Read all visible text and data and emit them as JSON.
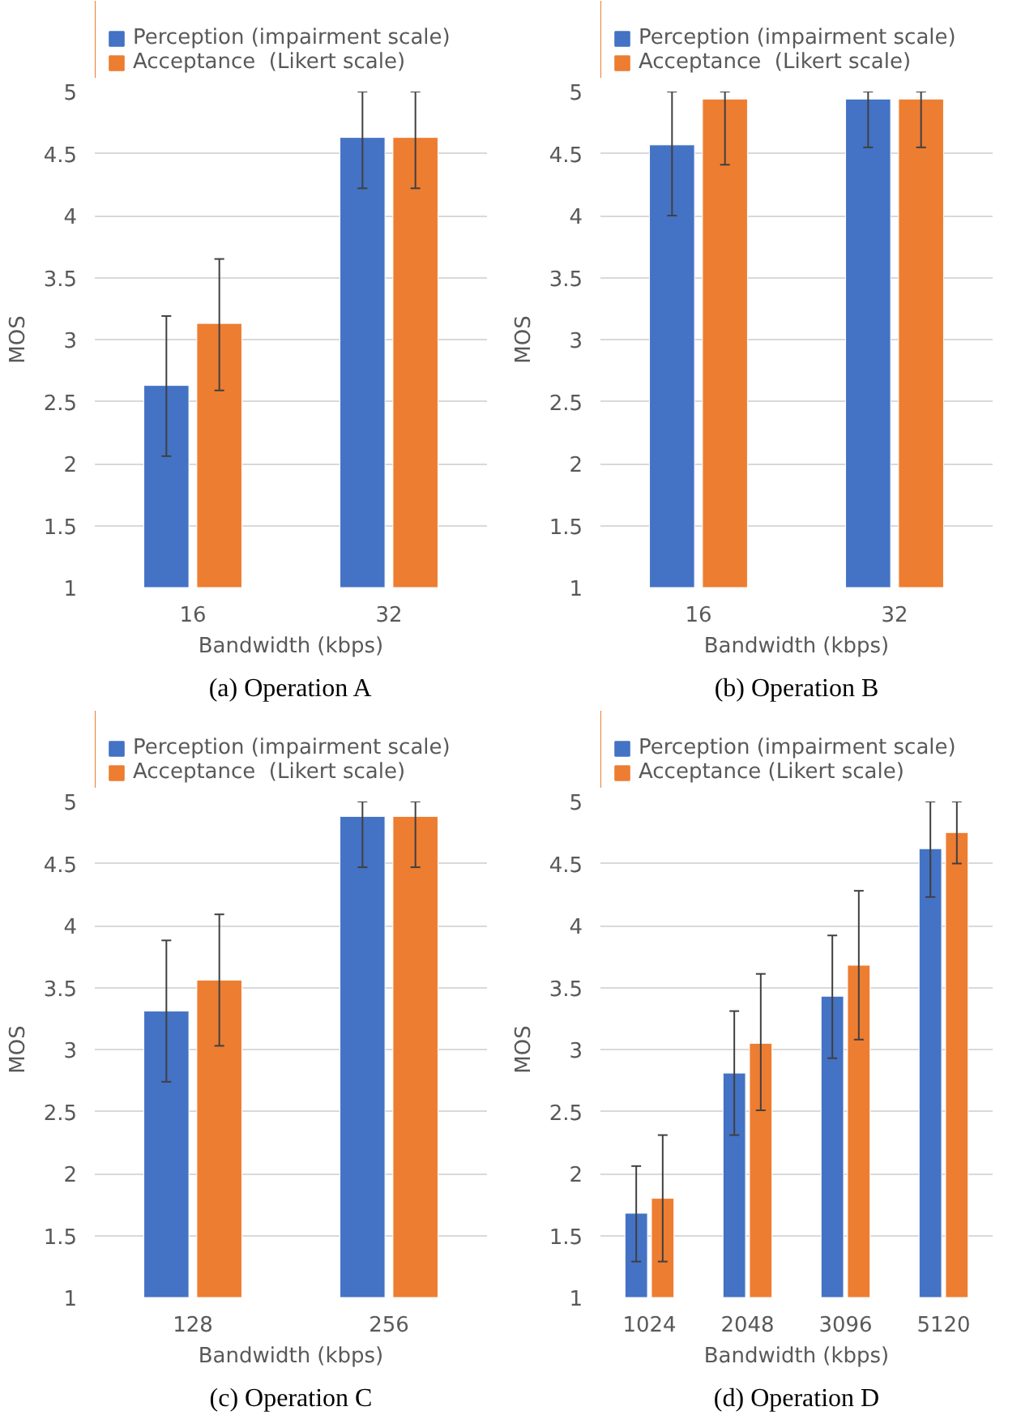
{
  "chart_data": [
    {
      "type": "bar",
      "categories": [
        "16",
        "32"
      ],
      "xlabel": "Bandwidth (kbps)",
      "ylabel": "MOS",
      "ylim": [
        1,
        5
      ],
      "yticks": [
        1,
        1.5,
        2,
        2.5,
        3,
        3.5,
        4,
        4.5,
        5
      ],
      "grid": "y",
      "legend": "top left",
      "annotations": [
        "(a) Operation A"
      ],
      "series": [
        {
          "name": "Perception (impairment scale)",
          "color": "#4472c4",
          "values": [
            2.63,
            4.63
          ],
          "errors": [
            [
              2.06,
              3.19
            ],
            [
              4.22,
              5.0
            ]
          ]
        },
        {
          "name": "Acceptance  (Likert scale)",
          "color": "#ed7d31",
          "values": [
            3.13,
            4.63
          ],
          "errors": [
            [
              2.59,
              3.65
            ],
            [
              4.22,
              5.0
            ]
          ]
        }
      ]
    },
    {
      "type": "bar",
      "categories": [
        "16",
        "32"
      ],
      "xlabel": "Bandwidth (kbps)",
      "ylabel": "MOS",
      "ylim": [
        1,
        5
      ],
      "yticks": [
        1,
        1.5,
        2,
        2.5,
        3,
        3.5,
        4,
        4.5,
        5
      ],
      "grid": "y",
      "legend": "top left",
      "annotations": [
        "(b) Operation B"
      ],
      "series": [
        {
          "name": "Perception (impairment scale)",
          "color": "#4472c4",
          "values": [
            4.57,
            4.94
          ],
          "errors": [
            [
              4.0,
              5.0
            ],
            [
              4.55,
              5.0
            ]
          ]
        },
        {
          "name": "Acceptance  (Likert scale)",
          "color": "#ed7d31",
          "values": [
            4.94,
            4.94
          ],
          "errors": [
            [
              4.41,
              5.0
            ],
            [
              4.55,
              5.0
            ]
          ]
        }
      ]
    },
    {
      "type": "bar",
      "categories": [
        "128",
        "256"
      ],
      "xlabel": "Bandwidth (kbps)",
      "ylabel": "MOS",
      "ylim": [
        1,
        5
      ],
      "yticks": [
        1,
        1.5,
        2,
        2.5,
        3,
        3.5,
        4,
        4.5,
        5
      ],
      "grid": "y",
      "legend": "top left",
      "annotations": [
        "(c) Operation C"
      ],
      "series": [
        {
          "name": "Perception (impairment scale)",
          "color": "#4472c4",
          "values": [
            3.31,
            4.88
          ],
          "errors": [
            [
              2.74,
              3.88
            ],
            [
              4.47,
              5.0
            ]
          ]
        },
        {
          "name": "Acceptance  (Likert scale)",
          "color": "#ed7d31",
          "values": [
            3.56,
            4.88
          ],
          "errors": [
            [
              3.03,
              4.09
            ],
            [
              4.47,
              5.0
            ]
          ]
        }
      ]
    },
    {
      "type": "bar",
      "categories": [
        "1024",
        "2048",
        "3096",
        "5120"
      ],
      "xlabel": "Bandwidth (kbps)",
      "ylabel": "MOS",
      "ylim": [
        1,
        5
      ],
      "yticks": [
        1,
        1.5,
        2,
        2.5,
        3,
        3.5,
        4,
        4.5,
        5
      ],
      "grid": "y",
      "legend": "top left",
      "annotations": [
        "(d) Operation D"
      ],
      "series": [
        {
          "name": "Perception (impairment scale)",
          "color": "#4472c4",
          "values": [
            1.68,
            2.81,
            3.43,
            4.62
          ],
          "errors": [
            [
              1.29,
              2.06
            ],
            [
              2.31,
              3.31
            ],
            [
              2.93,
              3.92
            ],
            [
              4.23,
              5.0
            ]
          ]
        },
        {
          "name": "Acceptance (Likert scale)",
          "color": "#ed7d31",
          "values": [
            1.8,
            3.05,
            3.68,
            4.75
          ],
          "errors": [
            [
              1.29,
              2.31
            ],
            [
              2.51,
              3.61
            ],
            [
              3.08,
              4.28
            ],
            [
              4.5,
              5.0
            ]
          ]
        }
      ]
    }
  ]
}
